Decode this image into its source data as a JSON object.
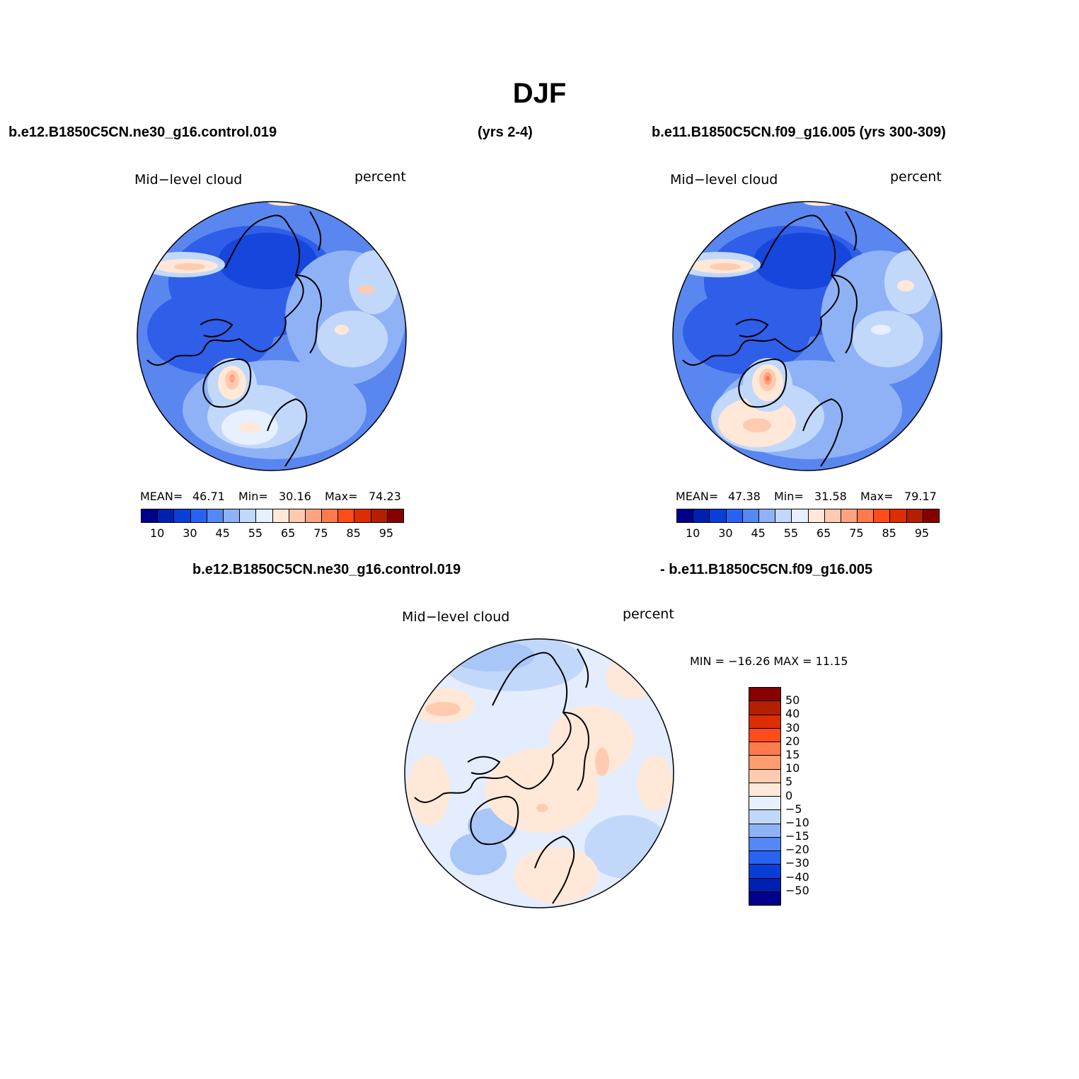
{
  "title": "DJF",
  "header": {
    "left_case": "b.e12.B1850C5CN.ne30_g16.control.019",
    "left_years": "(yrs 2-4)",
    "right_case": "b.e11.B1850C5CN.f09_g16.005 (yrs 300-309)",
    "diff_left": "b.e12.B1850C5CN.ne30_g16.control.019",
    "diff_right": "- b.e11.B1850C5CN.f09_g16.005"
  },
  "panels": [
    {
      "variable": "Mid−level cloud",
      "units": "percent",
      "mean_label": "MEAN=",
      "mean": "46.71",
      "min_label": "Min=",
      "min": "30.16",
      "max_label": "Max=",
      "max": "74.23"
    },
    {
      "variable": "Mid−level cloud",
      "units": "percent",
      "mean_label": "MEAN=",
      "mean": "47.38",
      "min_label": "Min=",
      "min": "31.58",
      "max_label": "Max=",
      "max": "79.17"
    },
    {
      "variable": "Mid−level cloud",
      "units": "percent",
      "minmax_text": "MIN = −16.26 MAX =  11.15"
    }
  ],
  "abs_colorbar": {
    "tick_labels": [
      "10",
      "30",
      "45",
      "55",
      "65",
      "75",
      "85",
      "95"
    ],
    "colors": [
      "#00008a",
      "#0020b0",
      "#0a3fd6",
      "#2a62f0",
      "#5588f5",
      "#8fb2f7",
      "#c2d8fb",
      "#e6f0ff",
      "#ffe8d8",
      "#ffcbb0",
      "#ffa382",
      "#ff7a4d",
      "#ff4c1a",
      "#dd2e00",
      "#b41f00",
      "#870000"
    ]
  },
  "diff_colorbar": {
    "labels": [
      "50",
      "40",
      "30",
      "20",
      "15",
      "10",
      "5",
      "0",
      "−5",
      "−10",
      "−15",
      "−20",
      "−30",
      "−40",
      "−50"
    ],
    "colors": [
      "#870000",
      "#b41f00",
      "#dd2e00",
      "#ff4c1a",
      "#ff7a4d",
      "#ff9c70",
      "#ffcbb0",
      "#ffe8d8",
      "#e6f0ff",
      "#c2d8fb",
      "#8fb2f7",
      "#5588f5",
      "#2a62f0",
      "#0a3fd6",
      "#0020b0",
      "#00008a"
    ]
  }
}
